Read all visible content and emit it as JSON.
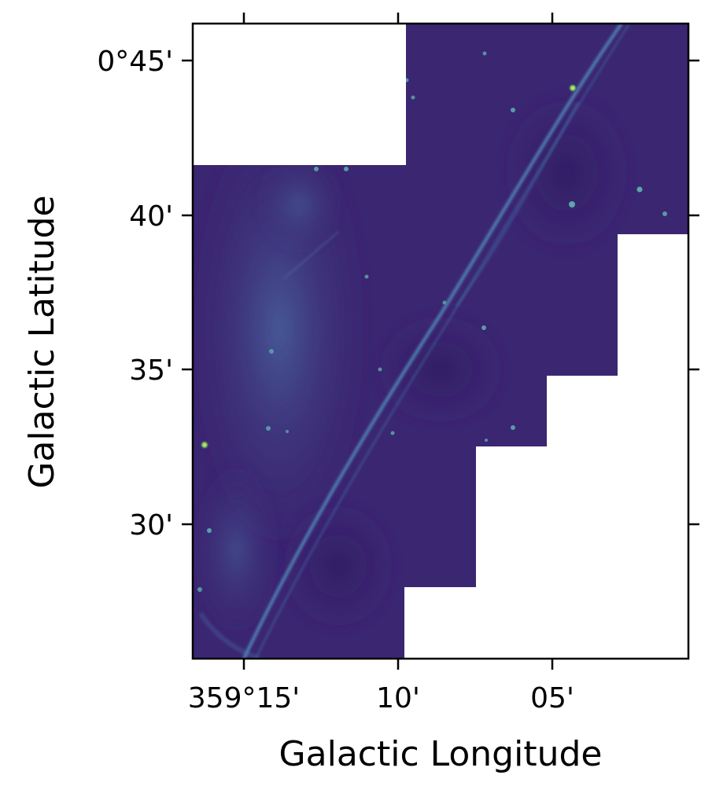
{
  "figure": {
    "image_description": "Astronomical survey mosaic (viridis colormap) showing a long thin curved filament, faint diffuse emission and point sources; irregular staircase-shaped coverage with blank (white) regions at top-left and right/bottom-right.",
    "colormap": "viridis",
    "colors": {
      "background_dark": "#3a2470",
      "diffuse_emission": "#3f5b98",
      "filament": "#4e7fb0",
      "bright_source": "#a8e05a",
      "blank": "#ffffff",
      "frame": "#000000"
    }
  },
  "chart_data": {
    "type": "heatmap",
    "title": "",
    "xlabel": "Galactic Longitude",
    "ylabel": "Galactic Latitude",
    "x_tick_labels": [
      "359°15'",
      "10'",
      "05'"
    ],
    "y_tick_labels": [
      "0°45'",
      "40'",
      "35'",
      "30'"
    ],
    "x_ticks_arcmin_relative": [
      -15,
      -10,
      -5
    ],
    "y_ticks_arcmin": [
      45,
      40,
      35,
      30
    ],
    "grid": false,
    "legend": "none"
  }
}
